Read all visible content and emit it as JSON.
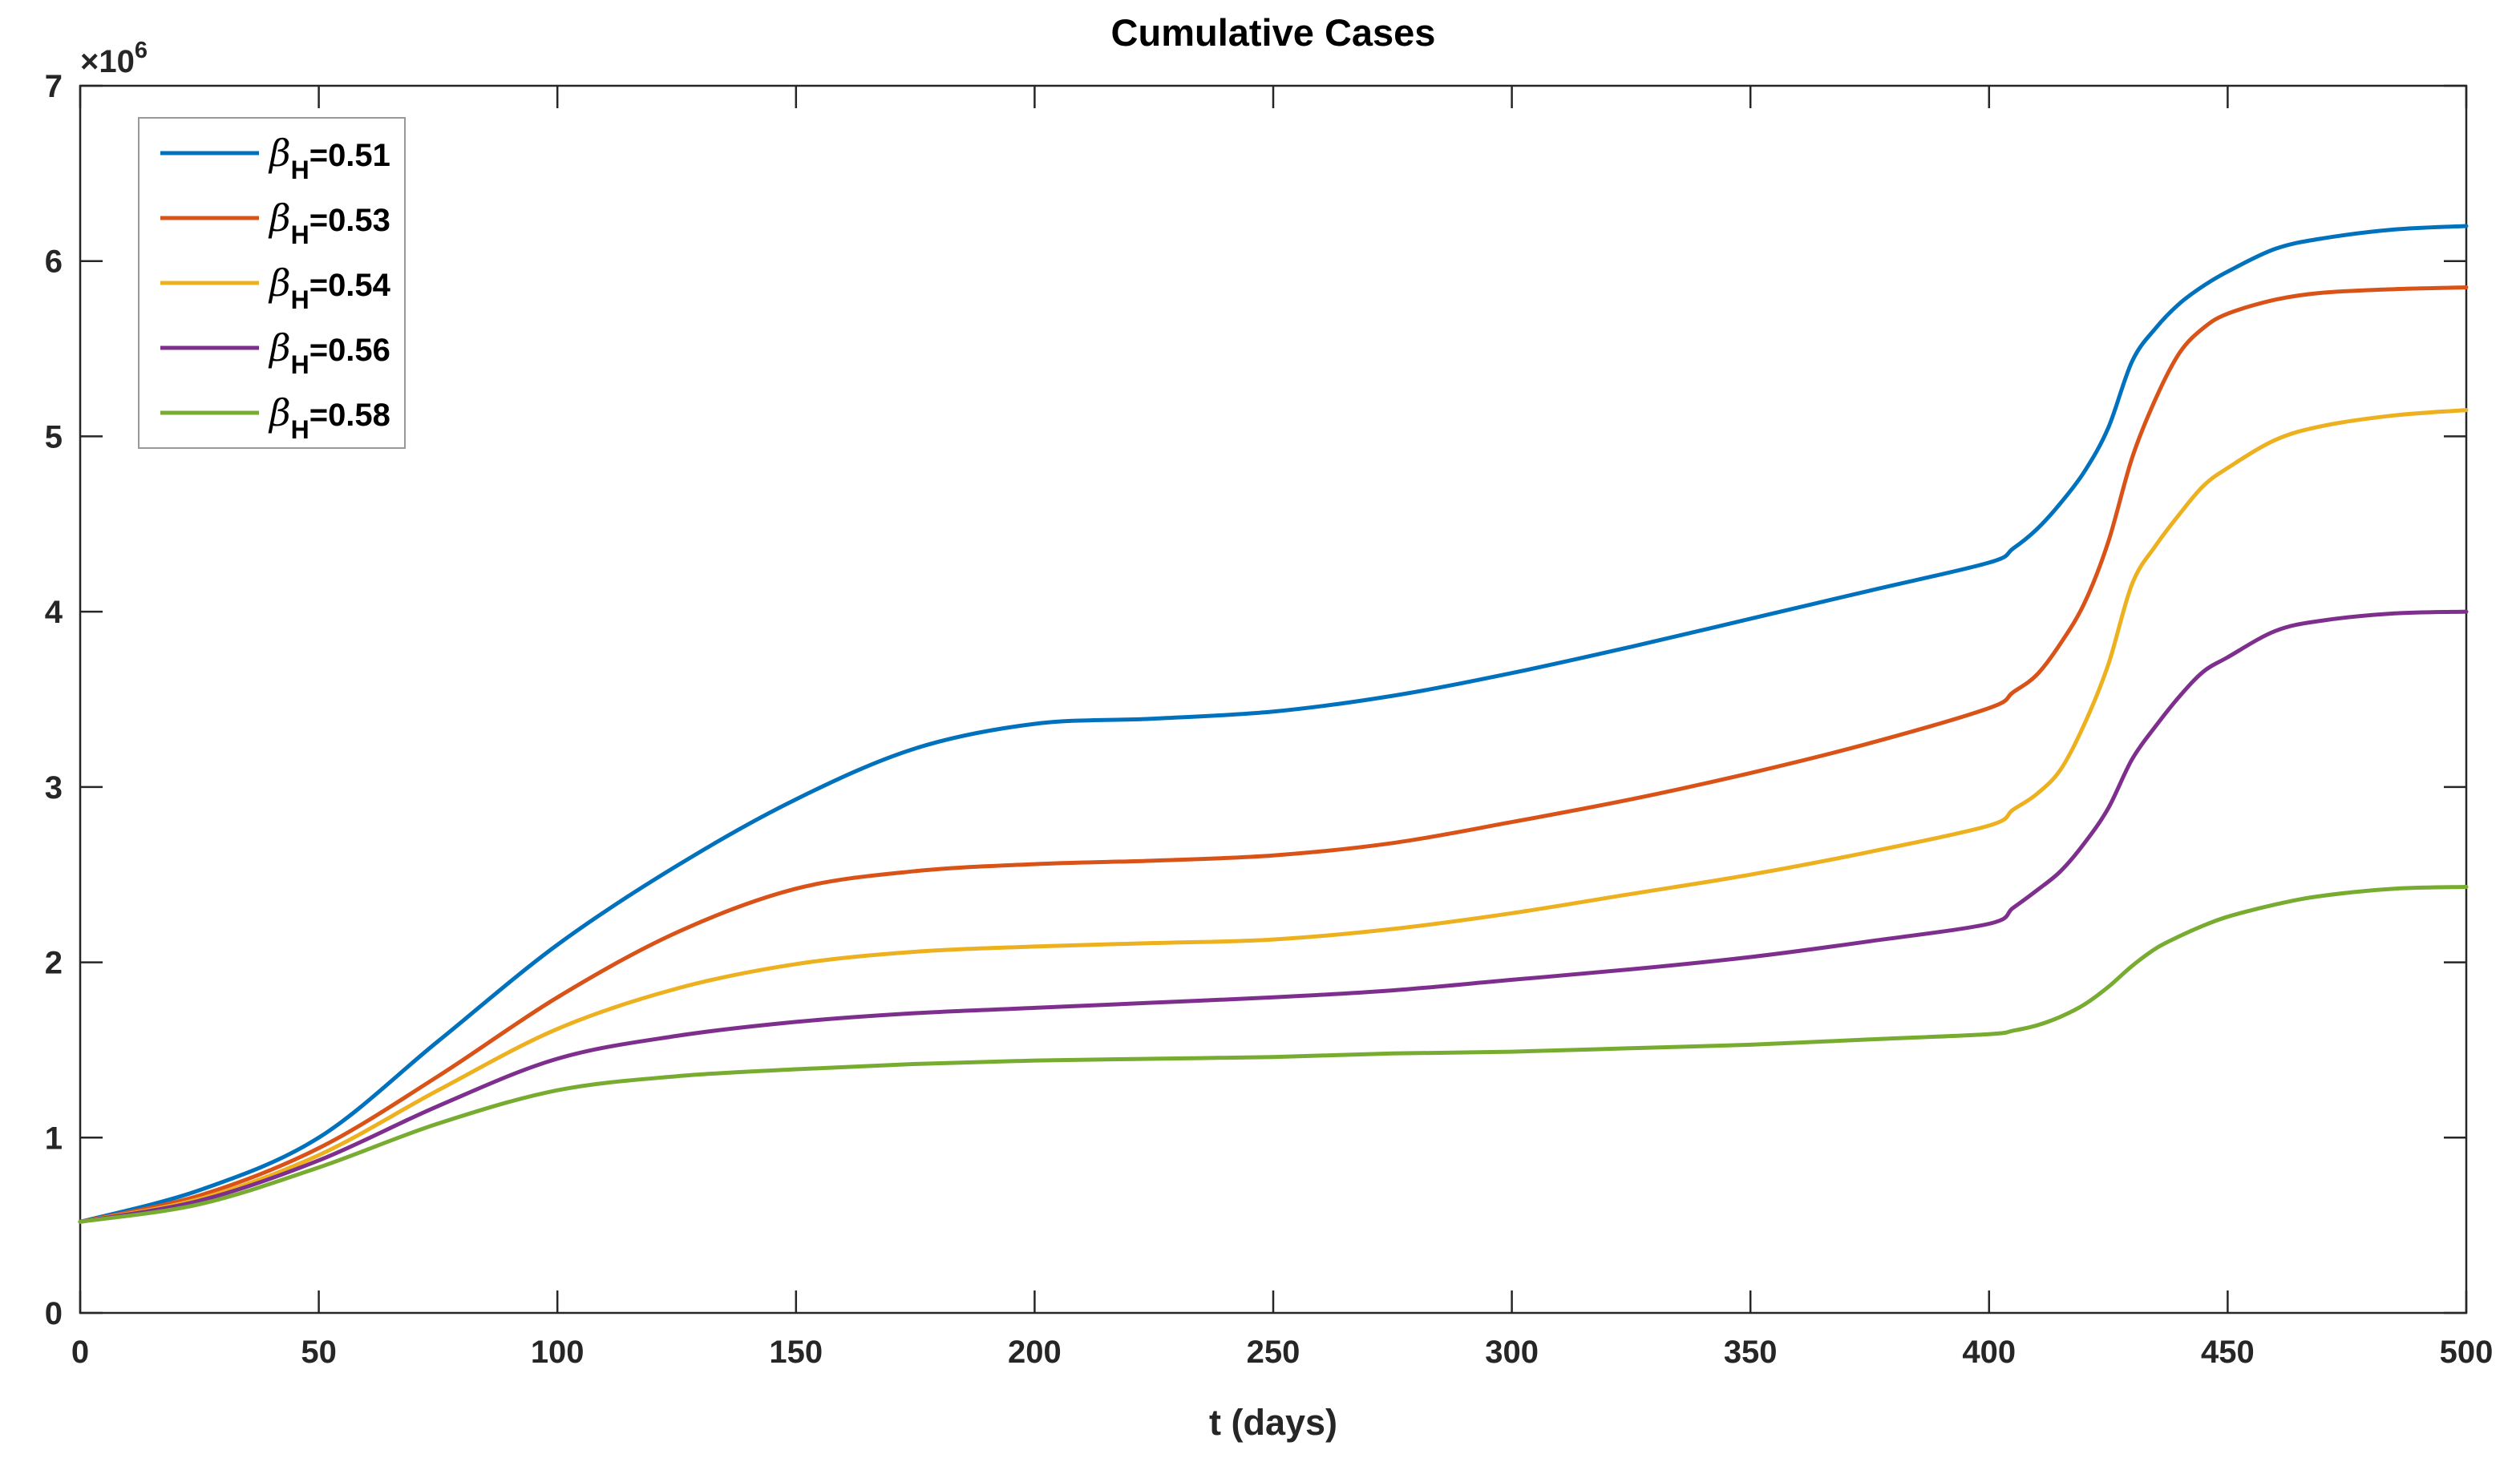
{
  "chart_data": {
    "type": "line",
    "title": "Cumulative Cases",
    "xlabel": "t (days)",
    "ylabel": "",
    "y_axis_multiplier": {
      "base": "×10",
      "exp": "6"
    },
    "xlim": [
      0,
      500
    ],
    "ylim_millions": [
      0,
      7
    ],
    "x_ticks": [
      0,
      50,
      100,
      150,
      200,
      250,
      300,
      350,
      400,
      450,
      500
    ],
    "x_tick_labels": [
      "0",
      "50",
      "100",
      "150",
      "200",
      "250",
      "300",
      "350",
      "400",
      "450",
      "500"
    ],
    "y_ticks_millions": [
      0,
      1,
      2,
      3,
      4,
      5,
      6,
      7
    ],
    "y_tick_labels": [
      "0",
      "1",
      "2",
      "3",
      "4",
      "5",
      "6",
      "7"
    ],
    "grid": false,
    "axis_color": "#262626",
    "legend": {
      "position": "top-left",
      "border_color": "#999999"
    },
    "x": [
      0,
      25,
      50,
      75,
      100,
      125,
      150,
      175,
      200,
      225,
      250,
      275,
      300,
      325,
      350,
      375,
      400,
      405,
      410,
      415,
      420,
      425,
      430,
      435,
      440,
      445,
      450,
      460,
      470,
      485,
      500
    ],
    "series": [
      {
        "name": "beta_H=0.51",
        "legend_label": {
          "beta": "β",
          "sub": "H",
          "value": "=0.51"
        },
        "color": "#0072BD",
        "values_millions": [
          0.52,
          0.7,
          1.0,
          1.55,
          2.1,
          2.55,
          2.93,
          3.22,
          3.36,
          3.39,
          3.43,
          3.52,
          3.65,
          3.8,
          3.96,
          4.12,
          4.28,
          4.36,
          4.47,
          4.62,
          4.8,
          5.05,
          5.43,
          5.62,
          5.76,
          5.86,
          5.94,
          6.07,
          6.13,
          6.18,
          6.2
        ]
      },
      {
        "name": "beta_H=0.53",
        "legend_label": {
          "beta": "β",
          "sub": "H",
          "value": "=0.53"
        },
        "color": "#D95319",
        "values_millions": [
          0.52,
          0.67,
          0.94,
          1.35,
          1.8,
          2.17,
          2.42,
          2.52,
          2.56,
          2.58,
          2.61,
          2.68,
          2.8,
          2.93,
          3.08,
          3.25,
          3.45,
          3.54,
          3.64,
          3.82,
          4.05,
          4.4,
          4.88,
          5.22,
          5.48,
          5.62,
          5.7,
          5.78,
          5.82,
          5.84,
          5.85
        ]
      },
      {
        "name": "beta_H=0.54",
        "legend_label": {
          "beta": "β",
          "sub": "H",
          "value": "=0.54"
        },
        "color": "#EDB120",
        "values_millions": [
          0.52,
          0.65,
          0.9,
          1.27,
          1.62,
          1.85,
          1.99,
          2.06,
          2.09,
          2.11,
          2.13,
          2.19,
          2.28,
          2.39,
          2.5,
          2.63,
          2.78,
          2.87,
          2.96,
          3.1,
          3.36,
          3.7,
          4.16,
          4.38,
          4.56,
          4.72,
          4.82,
          4.98,
          5.06,
          5.12,
          5.15
        ]
      },
      {
        "name": "beta_H=0.56",
        "legend_label": {
          "beta": "β",
          "sub": "H",
          "value": "=0.56"
        },
        "color": "#7E2F8E",
        "values_millions": [
          0.52,
          0.64,
          0.87,
          1.18,
          1.45,
          1.58,
          1.66,
          1.71,
          1.74,
          1.77,
          1.8,
          1.84,
          1.9,
          1.96,
          2.03,
          2.12,
          2.22,
          2.31,
          2.41,
          2.52,
          2.68,
          2.88,
          3.16,
          3.35,
          3.52,
          3.66,
          3.74,
          3.89,
          3.95,
          3.99,
          4.0
        ]
      },
      {
        "name": "beta_H=0.58",
        "legend_label": {
          "beta": "β",
          "sub": "H",
          "value": "=0.58"
        },
        "color": "#77AC30",
        "values_millions": [
          0.52,
          0.62,
          0.83,
          1.08,
          1.27,
          1.35,
          1.39,
          1.42,
          1.44,
          1.45,
          1.46,
          1.48,
          1.49,
          1.51,
          1.53,
          1.56,
          1.59,
          1.61,
          1.64,
          1.69,
          1.76,
          1.86,
          1.98,
          2.08,
          2.15,
          2.21,
          2.26,
          2.33,
          2.38,
          2.42,
          2.43
        ]
      }
    ]
  }
}
